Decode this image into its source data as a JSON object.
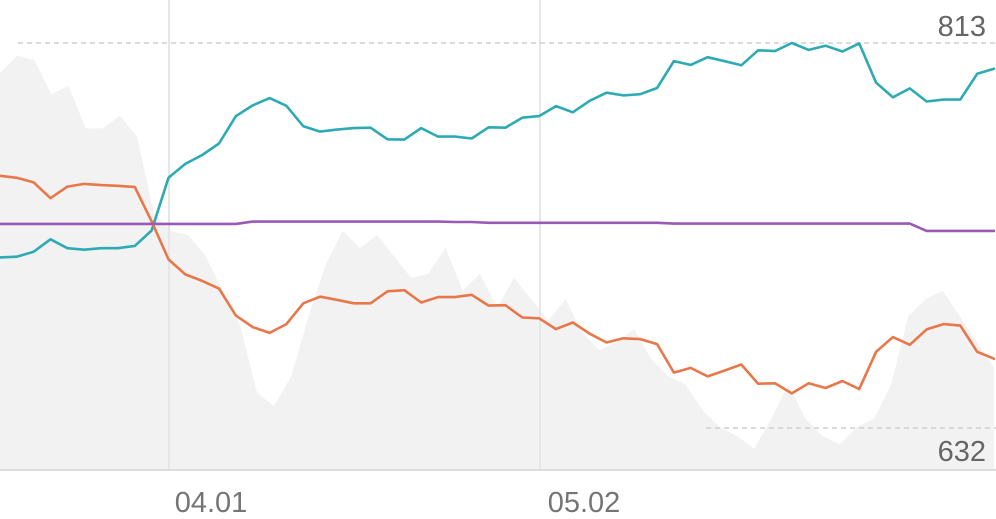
{
  "chart_data": {
    "type": "line",
    "x_tick_labels": [
      "04.01",
      "05.02"
    ],
    "max_label": "813",
    "min_label": "632",
    "y_range": [
      632,
      813
    ],
    "grid": true,
    "legend": "none",
    "background_area": {
      "color": "#f2f2f2",
      "values": [
        0.93,
        0.97,
        0.96,
        0.88,
        0.9,
        0.8,
        0.8,
        0.83,
        0.78,
        0.6,
        0.56,
        0.55,
        0.5,
        0.42,
        0.34,
        0.18,
        0.15,
        0.22,
        0.36,
        0.48,
        0.56,
        0.52,
        0.55,
        0.5,
        0.45,
        0.46,
        0.52,
        0.42,
        0.46,
        0.38,
        0.45,
        0.4,
        0.35,
        0.4,
        0.32,
        0.28,
        0.3,
        0.33,
        0.26,
        0.22,
        0.2,
        0.14,
        0.1,
        0.08,
        0.05,
        0.12,
        0.2,
        0.12,
        0.08,
        0.06,
        0.1,
        0.12,
        0.2,
        0.36,
        0.4,
        0.42,
        0.36,
        0.3,
        0.24
      ]
    },
    "series": [
      {
        "color": "#2eaab5",
        "values": [
          0.443,
          0.445,
          0.458,
          0.49,
          0.467,
          0.463,
          0.467,
          0.467,
          0.473,
          0.513,
          0.65,
          0.686,
          0.709,
          0.739,
          0.81,
          0.838,
          0.857,
          0.837,
          0.784,
          0.77,
          0.775,
          0.779,
          0.78,
          0.75,
          0.749,
          0.779,
          0.757,
          0.757,
          0.752,
          0.781,
          0.78,
          0.806,
          0.81,
          0.836,
          0.82,
          0.85,
          0.871,
          0.864,
          0.867,
          0.883,
          0.953,
          0.943,
          0.963,
          0.953,
          0.942,
          0.981,
          0.979,
          1.0,
          0.982,
          0.993,
          0.978,
          0.999,
          0.897,
          0.859,
          0.882,
          0.848,
          0.853,
          0.853,
          0.92,
          0.933
        ]
      },
      {
        "color": "#e8774a",
        "values": [
          0.655,
          0.65,
          0.638,
          0.597,
          0.627,
          0.634,
          0.631,
          0.629,
          0.626,
          0.537,
          0.438,
          0.399,
          0.382,
          0.362,
          0.292,
          0.262,
          0.247,
          0.27,
          0.324,
          0.341,
          0.333,
          0.324,
          0.324,
          0.355,
          0.358,
          0.326,
          0.34,
          0.34,
          0.346,
          0.318,
          0.319,
          0.287,
          0.285,
          0.257,
          0.274,
          0.245,
          0.222,
          0.233,
          0.231,
          0.218,
          0.144,
          0.156,
          0.134,
          0.149,
          0.165,
          0.115,
          0.116,
          0.09,
          0.116,
          0.104,
          0.122,
          0.101,
          0.198,
          0.236,
          0.216,
          0.256,
          0.27,
          0.266,
          0.198,
          0.18
        ]
      },
      {
        "color": "#9b59b6",
        "values": [
          0.53,
          0.53,
          0.53,
          0.53,
          0.53,
          0.53,
          0.53,
          0.53,
          0.53,
          0.53,
          0.53,
          0.53,
          0.53,
          0.53,
          0.53,
          0.536,
          0.536,
          0.536,
          0.536,
          0.536,
          0.536,
          0.536,
          0.536,
          0.536,
          0.536,
          0.536,
          0.536,
          0.535,
          0.535,
          0.533,
          0.533,
          0.533,
          0.533,
          0.533,
          0.533,
          0.533,
          0.533,
          0.533,
          0.533,
          0.533,
          0.531,
          0.531,
          0.531,
          0.531,
          0.531,
          0.531,
          0.531,
          0.531,
          0.531,
          0.531,
          0.531,
          0.531,
          0.531,
          0.531,
          0.531,
          0.512,
          0.512,
          0.512,
          0.512,
          0.512
        ]
      }
    ]
  }
}
